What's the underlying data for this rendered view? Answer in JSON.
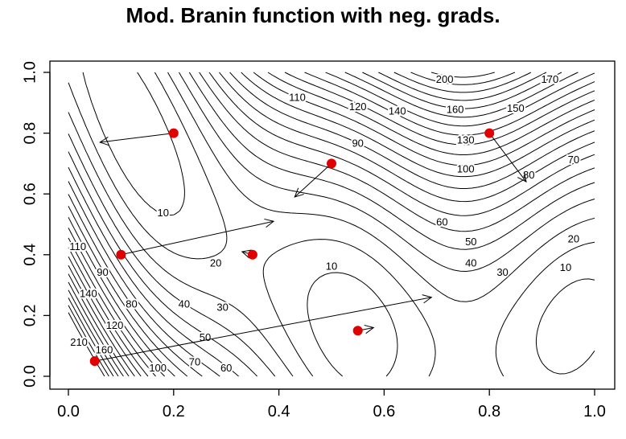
{
  "chart_data": {
    "type": "contour",
    "title": "Mod. Branin function with neg. grads.",
    "xlabel": "",
    "ylabel": "",
    "xlim": [
      0,
      1
    ],
    "ylim": [
      0,
      1
    ],
    "x_ticks": [
      "0.0",
      "0.2",
      "0.4",
      "0.6",
      "0.8",
      "1.0"
    ],
    "y_ticks": [
      "0.0",
      "0.2",
      "0.4",
      "0.6",
      "0.8",
      "1.0"
    ],
    "contour_levels": [
      10,
      20,
      30,
      40,
      50,
      60,
      70,
      80,
      90,
      100,
      110,
      120,
      130,
      140,
      150,
      160,
      170,
      180,
      190,
      200,
      210
    ],
    "contour_labels": [
      {
        "text": "200",
        "x": 0.715,
        "y": 0.975
      },
      {
        "text": "170",
        "x": 0.915,
        "y": 0.975
      },
      {
        "text": "110",
        "x": 0.435,
        "y": 0.915
      },
      {
        "text": "120",
        "x": 0.55,
        "y": 0.885
      },
      {
        "text": "140",
        "x": 0.625,
        "y": 0.87
      },
      {
        "text": "160",
        "x": 0.735,
        "y": 0.875
      },
      {
        "text": "150",
        "x": 0.85,
        "y": 0.88
      },
      {
        "text": "90",
        "x": 0.55,
        "y": 0.765
      },
      {
        "text": "130",
        "x": 0.755,
        "y": 0.775
      },
      {
        "text": "100",
        "x": 0.755,
        "y": 0.68
      },
      {
        "text": "80",
        "x": 0.875,
        "y": 0.66
      },
      {
        "text": "70",
        "x": 0.96,
        "y": 0.71
      },
      {
        "text": "10",
        "x": 0.18,
        "y": 0.535
      },
      {
        "text": "60",
        "x": 0.71,
        "y": 0.505
      },
      {
        "text": "50",
        "x": 0.765,
        "y": 0.44
      },
      {
        "text": "20",
        "x": 0.96,
        "y": 0.45
      },
      {
        "text": "40",
        "x": 0.765,
        "y": 0.37
      },
      {
        "text": "30",
        "x": 0.825,
        "y": 0.34
      },
      {
        "text": "10",
        "x": 0.945,
        "y": 0.355
      },
      {
        "text": "20",
        "x": 0.28,
        "y": 0.37
      },
      {
        "text": "10",
        "x": 0.5,
        "y": 0.36
      },
      {
        "text": "110",
        "x": 0.018,
        "y": 0.425
      },
      {
        "text": "90",
        "x": 0.065,
        "y": 0.34
      },
      {
        "text": "140",
        "x": 0.038,
        "y": 0.27
      },
      {
        "text": "80",
        "x": 0.12,
        "y": 0.235
      },
      {
        "text": "120",
        "x": 0.088,
        "y": 0.165
      },
      {
        "text": "40",
        "x": 0.22,
        "y": 0.235
      },
      {
        "text": "30",
        "x": 0.293,
        "y": 0.225
      },
      {
        "text": "50",
        "x": 0.26,
        "y": 0.125
      },
      {
        "text": "210",
        "x": 0.02,
        "y": 0.11
      },
      {
        "text": "160",
        "x": 0.068,
        "y": 0.085
      },
      {
        "text": "70",
        "x": 0.24,
        "y": 0.045
      },
      {
        "text": "100",
        "x": 0.17,
        "y": 0.025
      },
      {
        "text": "60",
        "x": 0.3,
        "y": 0.025
      }
    ],
    "points": [
      {
        "x": 0.2,
        "y": 0.8
      },
      {
        "x": 0.5,
        "y": 0.7
      },
      {
        "x": 0.8,
        "y": 0.8
      },
      {
        "x": 0.1,
        "y": 0.4
      },
      {
        "x": 0.35,
        "y": 0.4
      },
      {
        "x": 0.55,
        "y": 0.15
      },
      {
        "x": 0.05,
        "y": 0.05
      }
    ],
    "arrows": [
      {
        "x0": 0.2,
        "y0": 0.8,
        "x1": 0.06,
        "y1": 0.77
      },
      {
        "x0": 0.5,
        "y0": 0.7,
        "x1": 0.43,
        "y1": 0.59
      },
      {
        "x0": 0.8,
        "y0": 0.8,
        "x1": 0.87,
        "y1": 0.64
      },
      {
        "x0": 0.1,
        "y0": 0.4,
        "x1": 0.39,
        "y1": 0.51
      },
      {
        "x0": 0.35,
        "y0": 0.4,
        "x1": 0.33,
        "y1": 0.41
      },
      {
        "x0": 0.55,
        "y0": 0.15,
        "x1": 0.58,
        "y1": 0.16
      },
      {
        "x0": 0.05,
        "y0": 0.05,
        "x1": 0.69,
        "y1": 0.26
      }
    ],
    "point_color": "#e00000",
    "contour_color": "#000000",
    "grid": false
  }
}
